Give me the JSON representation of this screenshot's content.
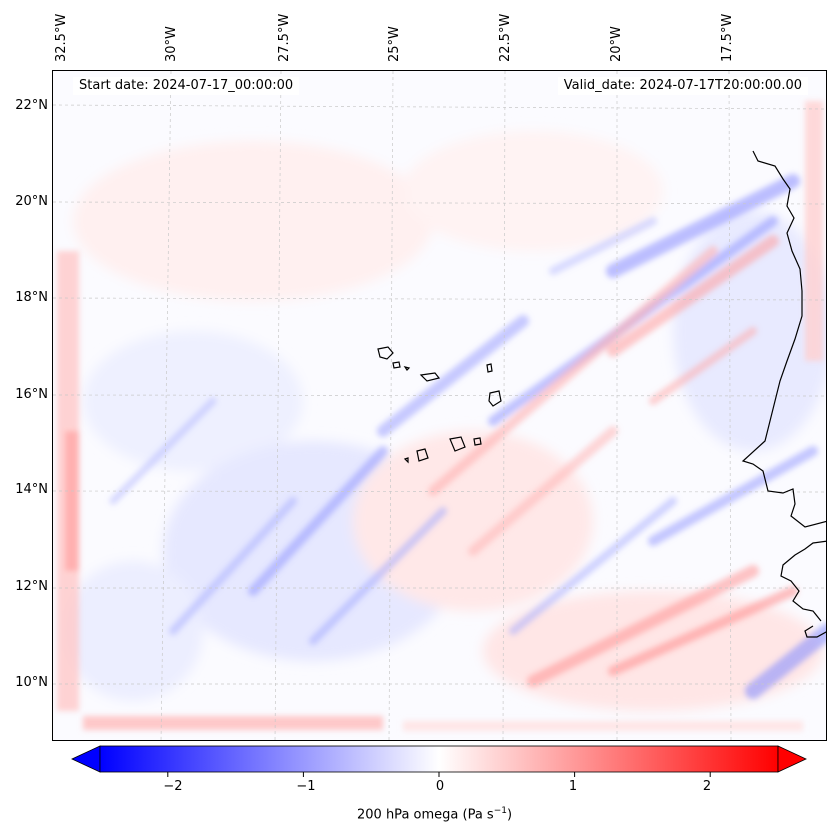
{
  "map": {
    "start_date": "Start date: 2024-07-17_00:00:00",
    "valid_date": "Valid_date: 2024-07-17T20:00:00.00",
    "lon_labels": [
      "32.5°W",
      "30°W",
      "27.5°W",
      "25°W",
      "22.5°W",
      "20°W",
      "17.5°W"
    ],
    "lat_labels": [
      "22°N",
      "20°N",
      "18°N",
      "16°N",
      "14°N",
      "12°N",
      "10°N"
    ],
    "colorbar": {
      "label_text": "200 hPa omega (Pa s",
      "label_sup": "−1",
      "label_close": ")",
      "ticks": [
        "−2",
        "−1",
        "0",
        "1",
        "2"
      ],
      "tick_values": [
        -2,
        -1,
        0,
        1,
        2
      ],
      "range": [
        -2.5,
        2.5
      ],
      "negative_color": "#0000ff",
      "zero_color": "#ffffff",
      "positive_color": "#ff0000"
    }
  }
}
